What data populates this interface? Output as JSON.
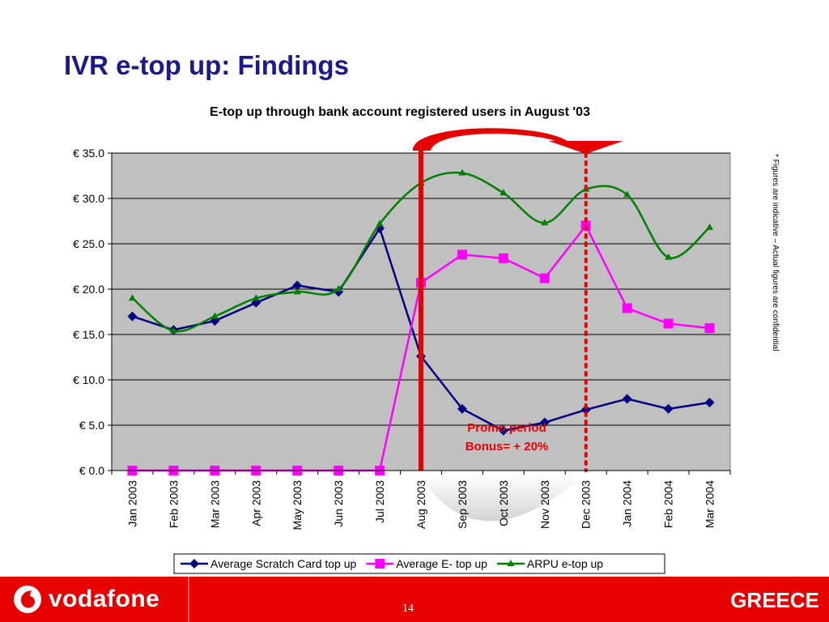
{
  "slide": {
    "title": "IVR e-top up: Findings",
    "side_note": "* Figures are indicative – Actual figures are confidential",
    "page_number": "14"
  },
  "footer": {
    "brand": "vodafone",
    "country": "GREECE",
    "color": "#e60000"
  },
  "chart_data": {
    "type": "line",
    "title": "E-top up through bank account registered users in August '03",
    "categories": [
      "Jan 2003",
      "Feb 2003",
      "Mar 2003",
      "Apr 2003",
      "May 2003",
      "Jun 2003",
      "Jul 2003",
      "Aug 2003",
      "Sep 2003",
      "Oct 2003",
      "Nov 2003",
      "Dec 2003",
      "Jan 2004",
      "Feb 2004",
      "Mar 2004"
    ],
    "yticks": [
      "€ 0.0",
      "€ 5.0",
      "€ 10.0",
      "€ 15.0",
      "€ 20.0",
      "€ 25.0",
      "€ 30.0",
      "€ 35.0"
    ],
    "ylim": [
      0,
      35
    ],
    "grid": true,
    "legend": "bottom",
    "series": [
      {
        "name": "Average Scratch Card top up",
        "color": "#000080",
        "marker": "diamond",
        "values": [
          17.0,
          15.5,
          16.5,
          18.5,
          20.4,
          19.7,
          26.7,
          12.6,
          6.8,
          4.4,
          5.3,
          6.7,
          7.9,
          6.8,
          7.5
        ]
      },
      {
        "name": "Average E- top up",
        "color": "#ff00ff",
        "marker": "square",
        "values": [
          0.0,
          0.0,
          0.0,
          0.0,
          0.0,
          0.0,
          0.0,
          20.7,
          23.8,
          23.4,
          21.2,
          27.0,
          17.9,
          16.2,
          15.7
        ]
      },
      {
        "name": "ARPU e-top up",
        "color": "#008000",
        "marker": "triangle",
        "values": [
          19.0,
          15.4,
          17.0,
          19.0,
          19.7,
          20.0,
          27.2,
          31.7,
          32.8,
          30.6,
          27.3,
          31.0,
          30.4,
          23.5,
          26.8
        ]
      }
    ],
    "annotation": {
      "lines": [
        "Promo period",
        "Bonus= + 20%"
      ],
      "color": "#e60000"
    }
  }
}
